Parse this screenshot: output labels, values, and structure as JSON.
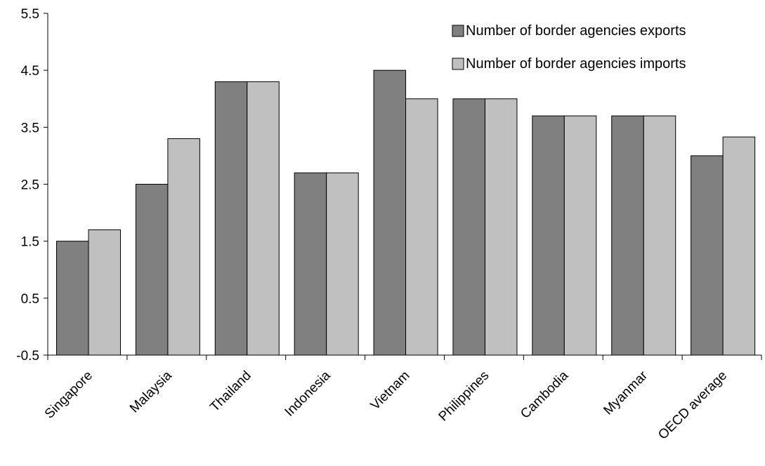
{
  "chart_data": {
    "type": "bar",
    "categories": [
      "Singapore",
      "Malaysia",
      "Thailand",
      "Indonesia",
      "Vietnam",
      "Philippines",
      "Cambodia",
      "Myanmar",
      "OECD average"
    ],
    "series": [
      {
        "name": "Number of border agencies exports",
        "color": "#808080",
        "values": [
          1.5,
          2.5,
          4.3,
          2.7,
          4.5,
          4.0,
          3.7,
          3.7,
          3.0
        ]
      },
      {
        "name": "Number of border agencies imports",
        "color": "#c0c0c0",
        "values": [
          1.7,
          3.3,
          4.3,
          2.7,
          4.0,
          4.0,
          3.7,
          3.7,
          3.33
        ]
      }
    ],
    "yticks": [
      "5.5",
      "4.5",
      "3.5",
      "2.5",
      "1.5",
      "0.5",
      "-0.5"
    ],
    "ylim": [
      -0.5,
      5.5
    ],
    "xlabel": "",
    "ylabel": "",
    "title": "",
    "grid": false,
    "legend_position": "top-right"
  }
}
